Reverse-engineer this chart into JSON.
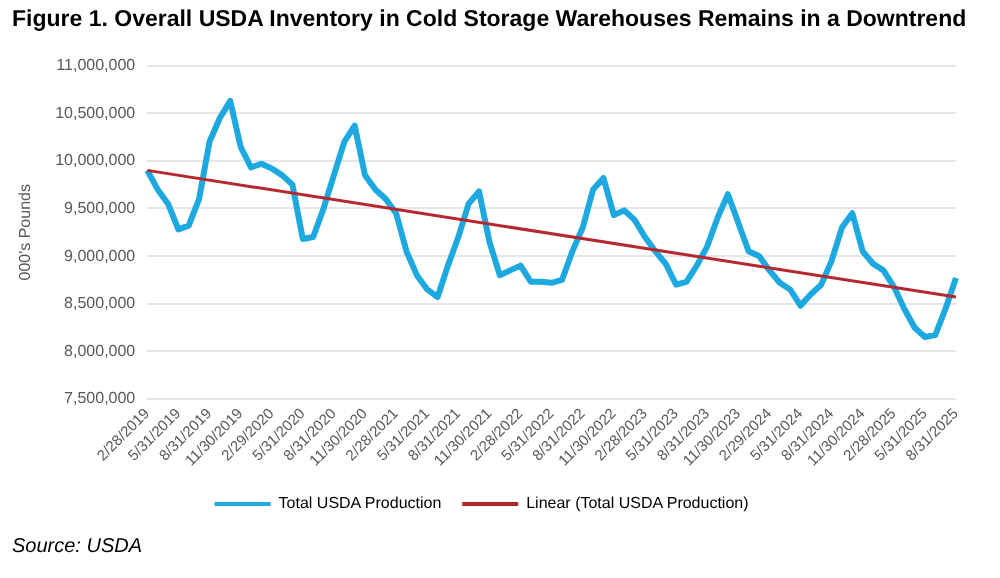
{
  "chart_data": {
    "type": "line",
    "title": "Figure 1. Overall USDA Inventory in Cold Storage Warehouses Remains in a Downtrend",
    "ylabel": "000's Pounds",
    "annotations": [
      "Source: USDA"
    ],
    "categories": [
      "2/28/2019",
      null,
      null,
      "5/31/2019",
      null,
      null,
      "8/31/2019",
      null,
      null,
      "11/30/2019",
      null,
      null,
      "2/29/2020",
      null,
      null,
      "5/31/2020",
      null,
      null,
      "8/31/2020",
      null,
      null,
      "11/30/2020",
      null,
      null,
      "2/28/2021",
      null,
      null,
      "5/31/2021",
      null,
      null,
      "8/31/2021",
      null,
      null,
      "11/30/2021",
      null,
      null,
      "2/28/2022",
      null,
      null,
      "5/31/2022",
      null,
      null,
      "8/31/2022",
      null,
      null,
      "11/30/2022",
      null,
      null,
      "2/28/2023",
      null,
      null,
      "5/31/2023",
      null,
      null,
      "8/31/2023",
      null,
      null,
      "11/30/2023",
      null,
      null,
      "2/29/2024",
      null,
      null,
      "5/31/2024",
      null,
      null,
      "8/31/2024",
      null,
      null,
      "11/30/2024",
      null,
      null,
      "2/28/2025",
      null,
      null,
      "5/31/2025",
      null,
      null,
      "8/31/2025"
    ],
    "series": [
      {
        "name": "Total USDA Production",
        "color": "#1ea8e0",
        "values": [
          9900000,
          9700000,
          9550000,
          9280000,
          9320000,
          9600000,
          10200000,
          10450000,
          10630000,
          10150000,
          9930000,
          9970000,
          9920000,
          9850000,
          9750000,
          9180000,
          9200000,
          9500000,
          9850000,
          10200000,
          10370000,
          9850000,
          9700000,
          9600000,
          9450000,
          9050000,
          8800000,
          8650000,
          8570000,
          8900000,
          9200000,
          9550000,
          9680000,
          9150000,
          8800000,
          8850000,
          8900000,
          8730000,
          8730000,
          8720000,
          8750000,
          9050000,
          9300000,
          9700000,
          9820000,
          9430000,
          9480000,
          9380000,
          9200000,
          9050000,
          8920000,
          8700000,
          8730000,
          8900000,
          9100000,
          9400000,
          9650000,
          9350000,
          9050000,
          9000000,
          8850000,
          8720000,
          8650000,
          8480000,
          8600000,
          8700000,
          8950000,
          9300000,
          9450000,
          9050000,
          8920000,
          8850000,
          8680000,
          8450000,
          8250000,
          8150000,
          8170000,
          8450000,
          8770000
        ]
      },
      {
        "name": "Linear (Total USDA Production)",
        "type": "line",
        "color": "#b5282e",
        "x": [
          "2/28/2019",
          "8/31/2025"
        ],
        "values": [
          9900000,
          8570000
        ]
      }
    ],
    "ylim": [
      7500000,
      11000000
    ],
    "yticks": [
      {
        "value": 7500000,
        "label": "7,500,000"
      },
      {
        "value": 8000000,
        "label": "8,000,000"
      },
      {
        "value": 8500000,
        "label": "8,500,000"
      },
      {
        "value": 9000000,
        "label": "9,000,000"
      },
      {
        "value": 9500000,
        "label": "9,500,000"
      },
      {
        "value": 10000000,
        "label": "10,000,000"
      },
      {
        "value": 10500000,
        "label": "10,500,000"
      },
      {
        "value": 11000000,
        "label": "11,000,000"
      }
    ],
    "grid": "y",
    "legend": "bottom",
    "marker": "none",
    "line_style": "solid"
  }
}
